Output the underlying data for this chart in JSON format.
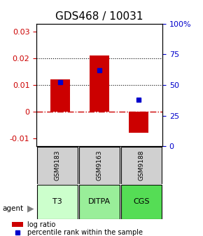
{
  "title": "GDS468 / 10031",
  "samples": [
    "GSM9183",
    "GSM9163",
    "GSM9188"
  ],
  "agents": [
    "T3",
    "DITPA",
    "CGS"
  ],
  "log_ratios": [
    0.012,
    0.021,
    -0.008
  ],
  "percentiles": [
    0.52,
    0.62,
    0.38
  ],
  "ylim_left": [
    -0.013,
    0.033
  ],
  "ylim_right": [
    0,
    1.0
  ],
  "yticks_left": [
    -0.01,
    0,
    0.01,
    0.02,
    0.03
  ],
  "ytick_labels_left": [
    "-0.01",
    "0",
    "0.01",
    "0.02",
    "0.03"
  ],
  "yticks_right": [
    0,
    0.25,
    0.5,
    0.75,
    1.0
  ],
  "ytick_labels_right": [
    "0",
    "25",
    "50",
    "75",
    "100%"
  ],
  "bar_color": "#cc0000",
  "dot_color": "#0000cc",
  "agent_colors": [
    "#b3ffb3",
    "#99ff99",
    "#66ee66"
  ],
  "sample_bg": "#d0d0d0",
  "hline_color": "#cc0000",
  "hline_style": "-.",
  "dotted_color": "black",
  "title_fontsize": 11,
  "tick_fontsize": 8,
  "label_fontsize": 8
}
